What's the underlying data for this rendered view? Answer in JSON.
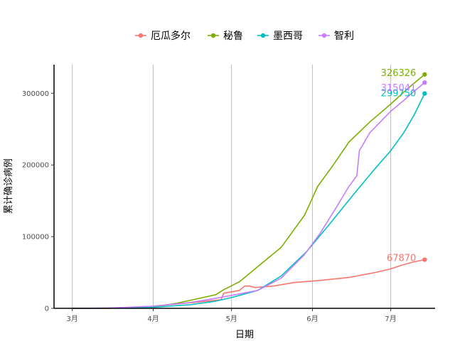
{
  "chart_data": {
    "type": "line",
    "xlabel": "日期",
    "ylabel": "累计确诊病例",
    "x_ticks": [
      {
        "label": "3月",
        "day": 0
      },
      {
        "label": "4月",
        "day": 31
      },
      {
        "label": "5月",
        "day": 61
      },
      {
        "label": "6月",
        "day": 92
      },
      {
        "label": "7月",
        "day": 122
      }
    ],
    "y_ticks": [
      0,
      100000,
      200000,
      300000
    ],
    "ylim": [
      0,
      340000
    ],
    "xlim": [
      -7,
      139
    ],
    "grid": "vertical major lines",
    "legend_position": "top",
    "series": [
      {
        "name": "厄瓜多尔",
        "color": "#F8766D",
        "end_label": "67870",
        "points": [
          [
            0,
            0
          ],
          [
            14,
            100
          ],
          [
            31,
            3000
          ],
          [
            46,
            8000
          ],
          [
            57,
            12000
          ],
          [
            58,
            21000
          ],
          [
            64,
            25000
          ],
          [
            66,
            31000
          ],
          [
            68,
            31000
          ],
          [
            70,
            29000
          ],
          [
            77,
            31000
          ],
          [
            85,
            36000
          ],
          [
            95,
            39000
          ],
          [
            106,
            43000
          ],
          [
            116,
            50000
          ],
          [
            122,
            55000
          ],
          [
            126,
            60000
          ],
          [
            130,
            64000
          ],
          [
            135,
            67870
          ]
        ]
      },
      {
        "name": "秘鲁",
        "color": "#7CAE00",
        "end_label": "326326",
        "points": [
          [
            0,
            0
          ],
          [
            14,
            200
          ],
          [
            31,
            2000
          ],
          [
            40,
            7000
          ],
          [
            50,
            15000
          ],
          [
            55,
            19000
          ],
          [
            58,
            26000
          ],
          [
            64,
            37000
          ],
          [
            70,
            55000
          ],
          [
            80,
            85000
          ],
          [
            89,
            130000
          ],
          [
            94,
            170000
          ],
          [
            100,
            200000
          ],
          [
            106,
            232000
          ],
          [
            114,
            260000
          ],
          [
            122,
            285000
          ],
          [
            128,
            305000
          ],
          [
            135,
            326326
          ]
        ]
      },
      {
        "name": "墨西哥",
        "color": "#00BFC4",
        "end_label": "299750",
        "points": [
          [
            0,
            0
          ],
          [
            14,
            300
          ],
          [
            31,
            1500
          ],
          [
            45,
            5000
          ],
          [
            55,
            10000
          ],
          [
            61,
            15000
          ],
          [
            71,
            25000
          ],
          [
            80,
            45000
          ],
          [
            90,
            80000
          ],
          [
            98,
            115000
          ],
          [
            108,
            160000
          ],
          [
            116,
            195000
          ],
          [
            122,
            220000
          ],
          [
            127,
            245000
          ],
          [
            131,
            270000
          ],
          [
            135,
            299750
          ]
        ]
      },
      {
        "name": "智利",
        "color": "#C77CFF",
        "end_label": "315041",
        "points": [
          [
            0,
            0
          ],
          [
            14,
            500
          ],
          [
            31,
            3000
          ],
          [
            45,
            8000
          ],
          [
            55,
            14000
          ],
          [
            61,
            18000
          ],
          [
            71,
            25000
          ],
          [
            80,
            42000
          ],
          [
            89,
            75000
          ],
          [
            95,
            105000
          ],
          [
            101,
            140000
          ],
          [
            106,
            170000
          ],
          [
            109,
            185000
          ],
          [
            110,
            220000
          ],
          [
            114,
            245000
          ],
          [
            122,
            275000
          ],
          [
            127,
            290000
          ],
          [
            131,
            303000
          ],
          [
            135,
            315041
          ]
        ]
      }
    ]
  }
}
